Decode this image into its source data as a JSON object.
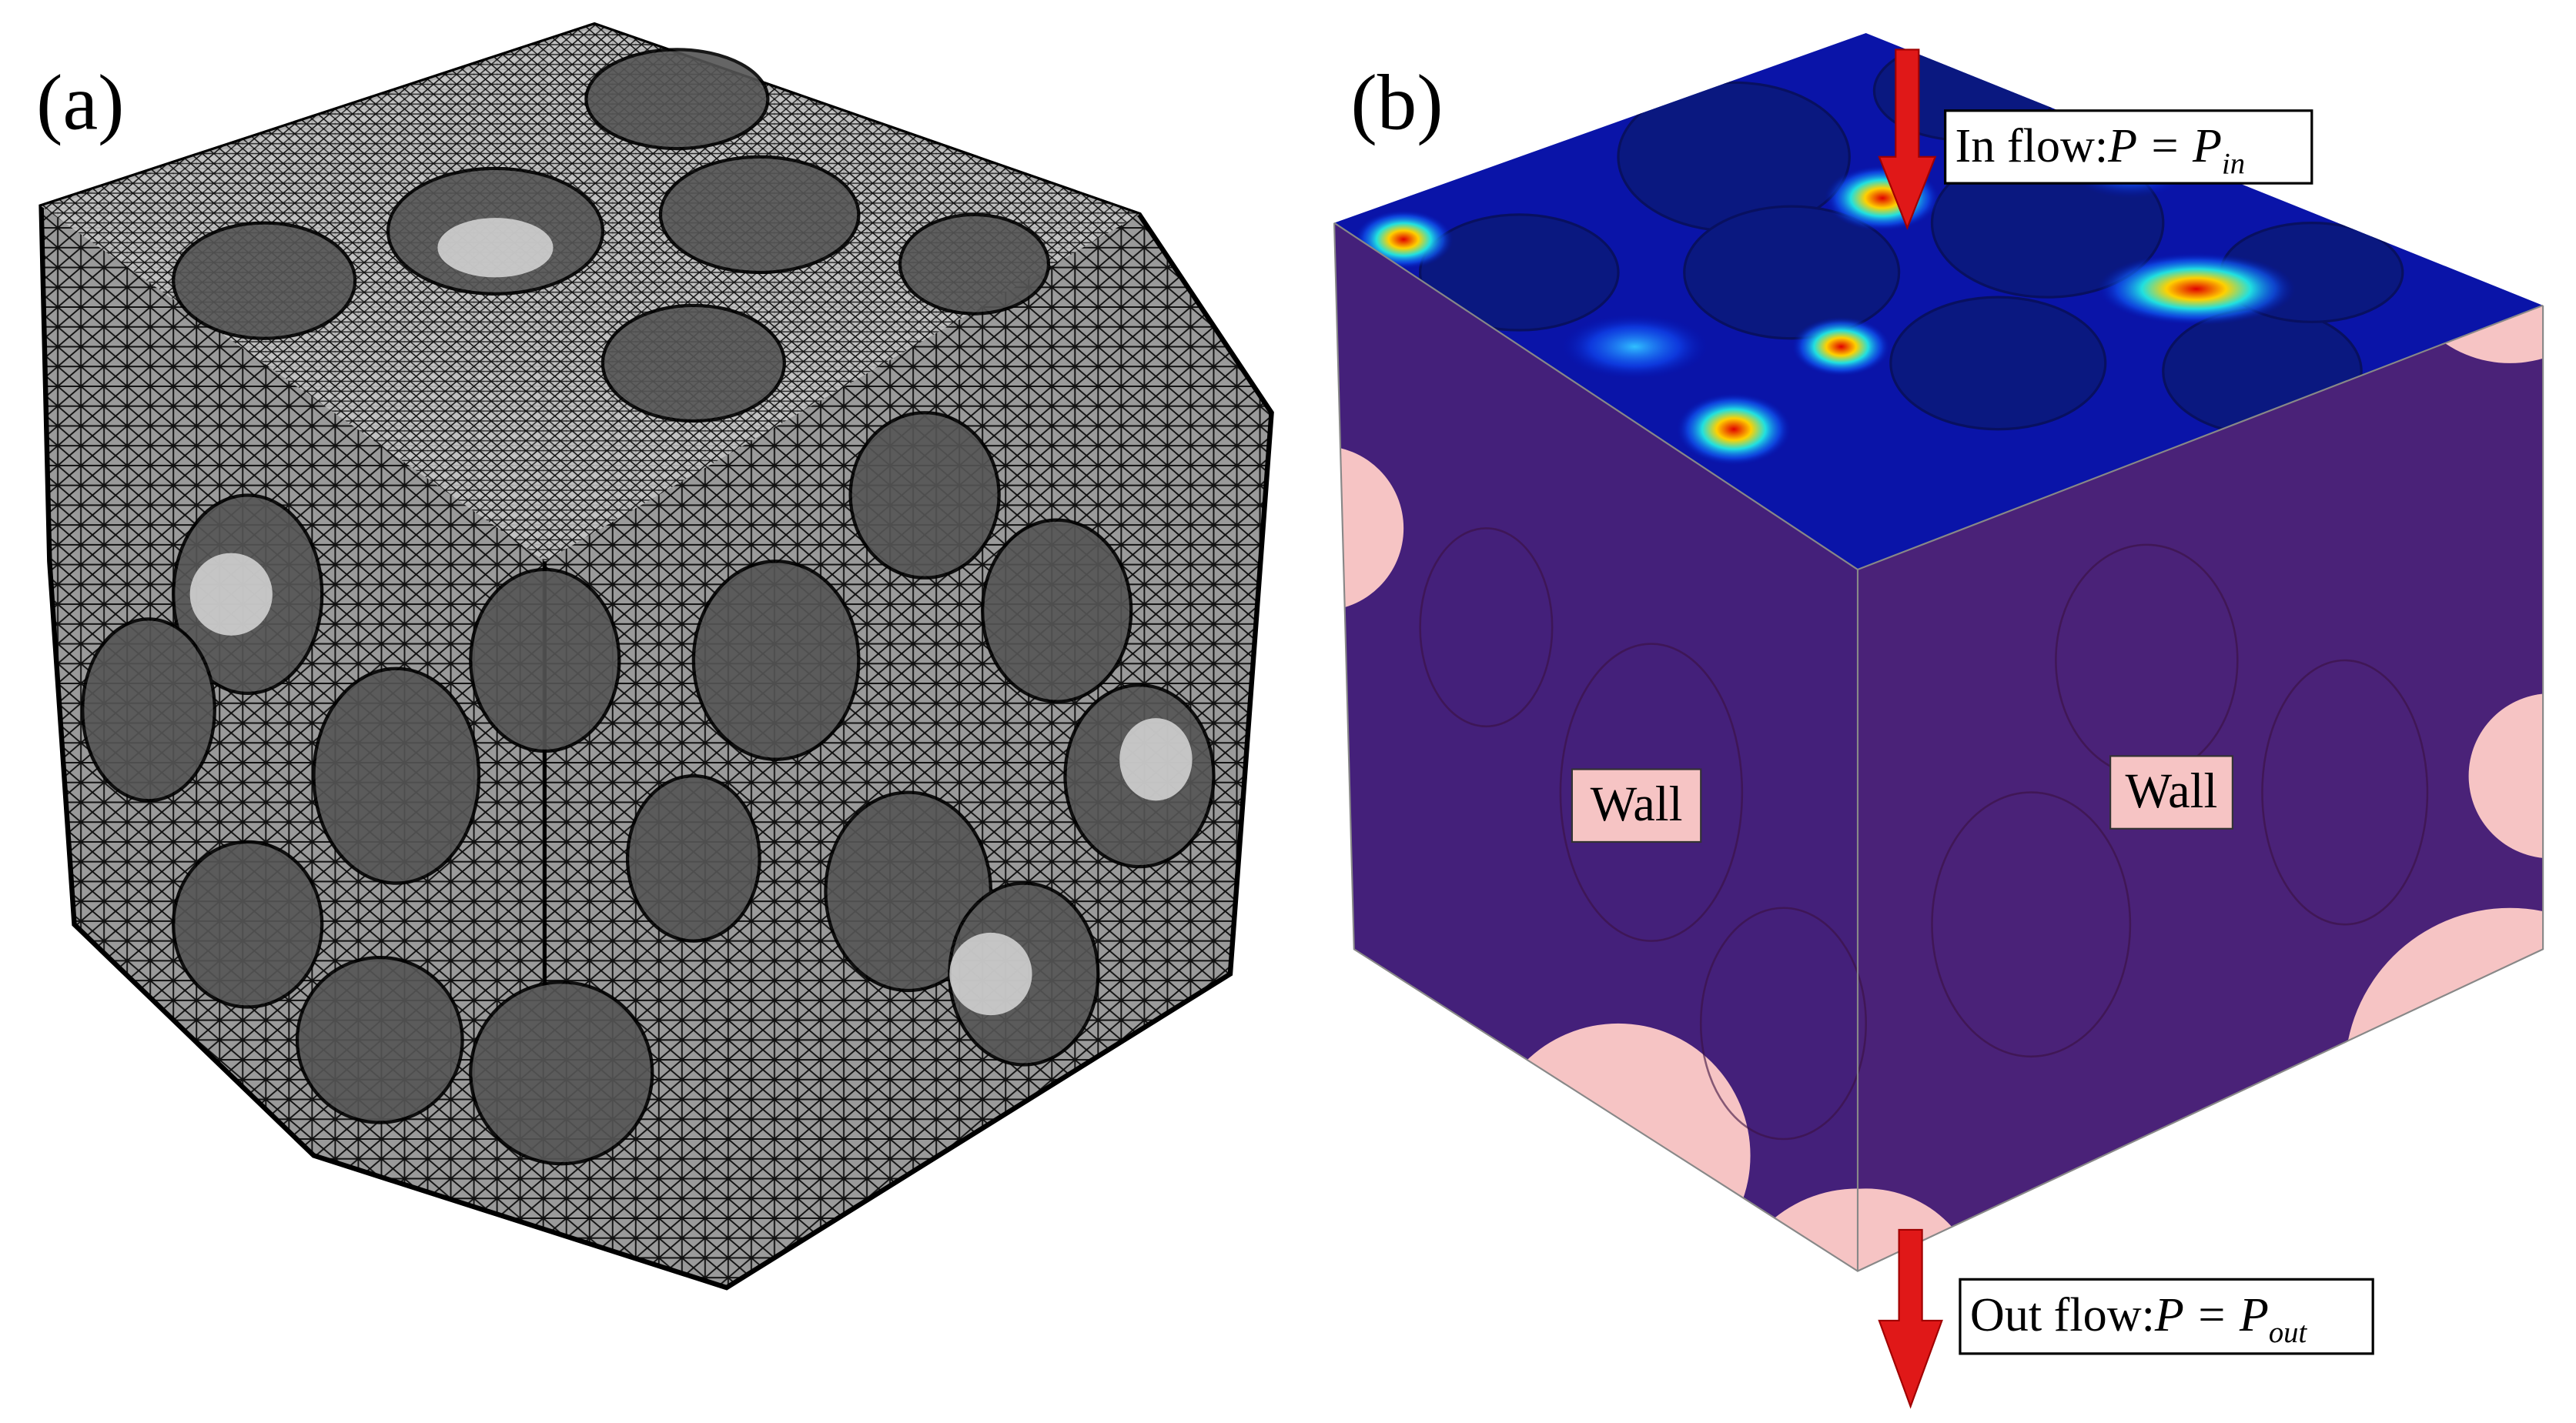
{
  "panels": [
    {
      "label": "(a)"
    },
    {
      "label": "(b)",
      "inflow": {
        "text": "In  flow:",
        "equation": "P = P",
        "subscript": "in"
      },
      "outflow": {
        "text": "Out flow:",
        "equation": "P = P",
        "subscript": "out"
      },
      "walls": [
        "Wall",
        "Wall"
      ]
    }
  ]
}
